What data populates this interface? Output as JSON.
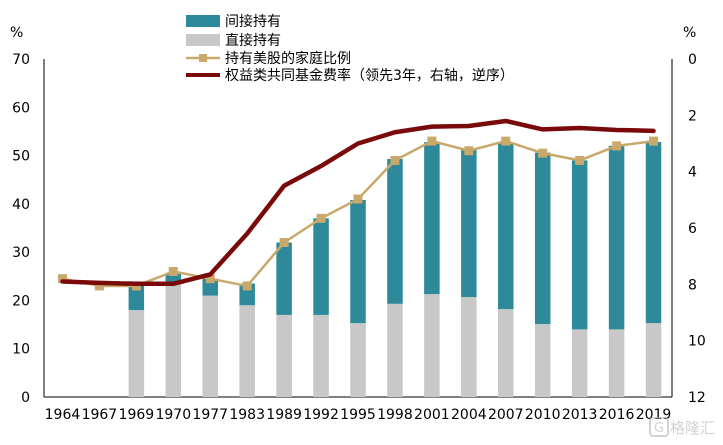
{
  "chart_data": {
    "type": "bar",
    "categories": [
      "1964",
      "1967",
      "1969",
      "1970",
      "1977",
      "1983",
      "1989",
      "1992",
      "1995",
      "1998",
      "2001",
      "2004",
      "2007",
      "2010",
      "2013",
      "2016",
      "2019"
    ],
    "y_left": {
      "unit": "%",
      "ylim": [
        0,
        70
      ],
      "ticks": [
        0,
        10,
        20,
        30,
        40,
        50,
        60,
        70
      ]
    },
    "y_right": {
      "unit": "%",
      "ylim": [
        0,
        12
      ],
      "reversed": true,
      "ticks": [
        0,
        2,
        4,
        6,
        8,
        10,
        12
      ]
    },
    "grid": false,
    "legend_position": "top-left",
    "series": [
      {
        "name": "间接持有",
        "type": "bar-stacked",
        "axis": "left",
        "color": "#2e8a9a",
        "values": [
          null,
          null,
          5,
          2,
          3.5,
          4.5,
          15,
          20,
          25.5,
          30,
          31.5,
          30.5,
          34.5,
          35.5,
          35,
          38,
          37.5
        ]
      },
      {
        "name": "直接持有",
        "type": "bar-stacked",
        "axis": "left",
        "color": "#c8c8c8",
        "values": [
          null,
          null,
          18,
          23.5,
          21,
          19,
          17,
          17,
          15.3,
          19.3,
          21.3,
          20.7,
          18.2,
          15.1,
          14,
          14,
          15.3
        ]
      },
      {
        "name": "持有美股的家庭比例",
        "type": "line-marker",
        "axis": "left",
        "color": "#c9a96b",
        "values": [
          24.5,
          23,
          23,
          26,
          24.5,
          23,
          32,
          37,
          41,
          49,
          53,
          51,
          53,
          50.5,
          49,
          52,
          53
        ]
      },
      {
        "name": "权益类共同基金费率（领先3年，右轴，逆序）",
        "type": "line",
        "axis": "right",
        "color": "#7a0a0a",
        "values": [
          7.9,
          7.95,
          7.98,
          7.98,
          7.65,
          6.2,
          4.5,
          3.8,
          3.0,
          2.6,
          2.4,
          2.38,
          2.2,
          2.5,
          2.45,
          2.52,
          2.55
        ]
      }
    ]
  },
  "watermark": {
    "text": "格隆汇",
    "icon": "g-logo-icon"
  }
}
